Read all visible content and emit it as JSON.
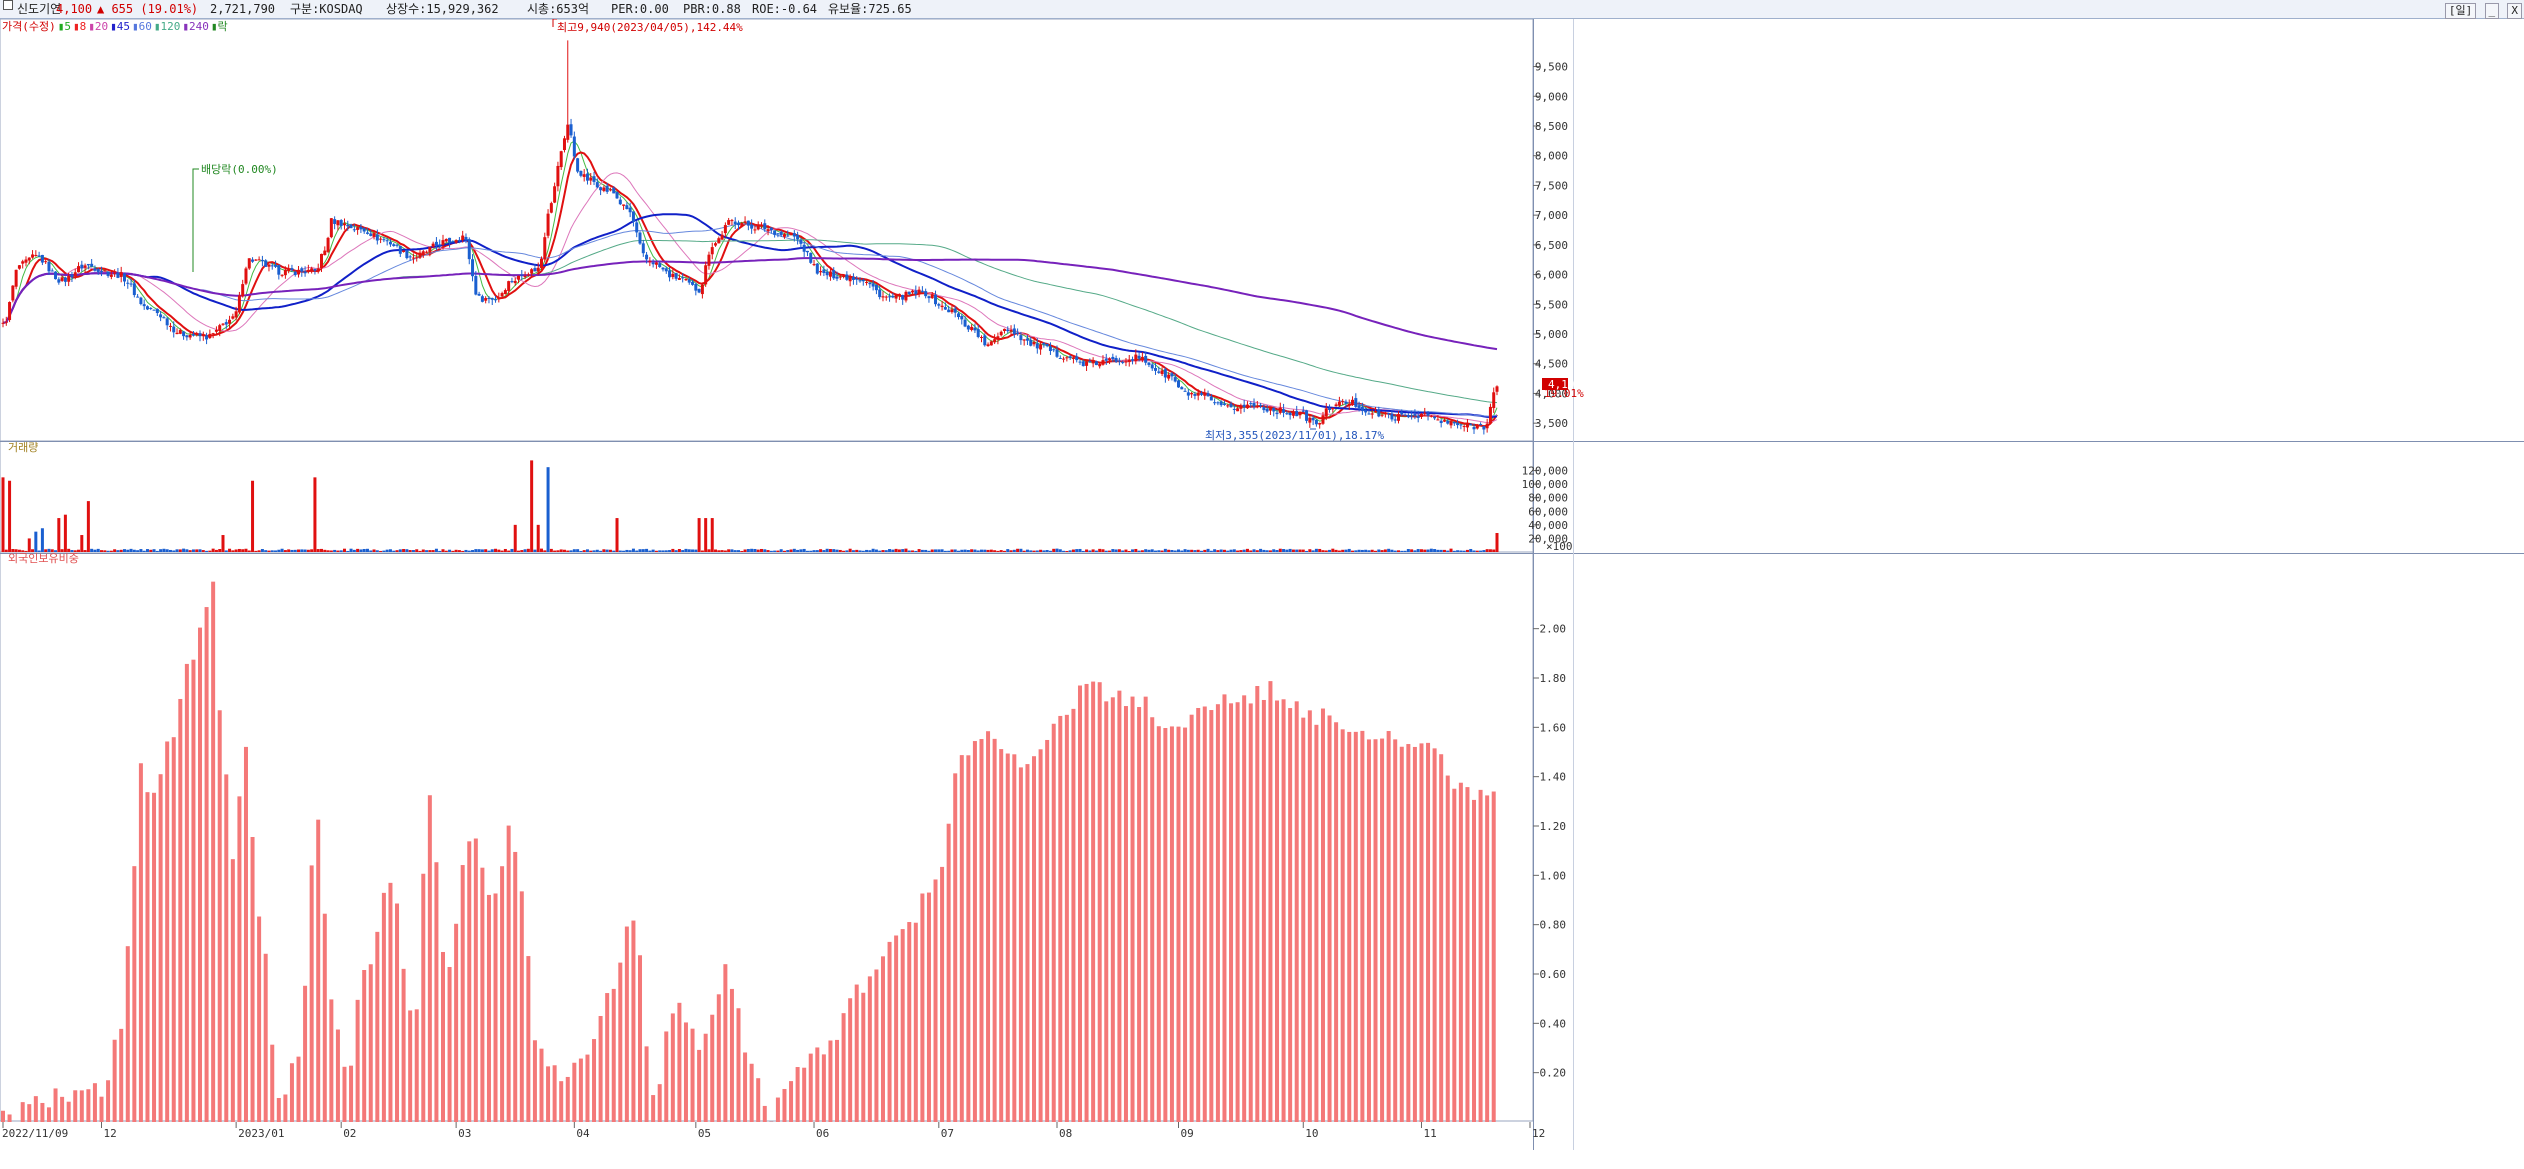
{
  "header": {
    "stock_name": "신도기연",
    "price": "4,100",
    "change": "▲ 655 (19.01%)",
    "volume": "2,721,790",
    "market": "구분:KOSDAQ",
    "shares": "상장수:15,929,362",
    "mcap": "시총:653억",
    "per": "PER:0.00",
    "pbr": "PBR:0.88",
    "roe": "ROE:-0.64",
    "float": "유보율:725.65",
    "period_button": "[일]",
    "min_button": "_",
    "close_button": "X"
  },
  "legend": {
    "price_label": "가격(수정)",
    "items": [
      {
        "label": "5",
        "color": "#22aa22"
      },
      {
        "label": "8",
        "color": "#ee2222"
      },
      {
        "label": "20",
        "color": "#cc44aa"
      },
      {
        "label": "45",
        "color": "#2222cc"
      },
      {
        "label": "60",
        "color": "#5577dd"
      },
      {
        "label": "120",
        "color": "#44aa88"
      },
      {
        "label": "240",
        "color": "#8833bb"
      },
      {
        "label": "락",
        "color": "#228822"
      }
    ]
  },
  "annotations": {
    "high": "최고9,940(2023/04/05),142.44%",
    "low": "최저3,355(2023/11/01),18.17%",
    "dividend": "배당락(0.00%)",
    "current_price": "4,100",
    "current_pct": "19.01%"
  },
  "volume_panel": {
    "title": "거래량",
    "unit": "×100"
  },
  "foreign_panel": {
    "title": "외국인보유비중"
  },
  "colors": {
    "up": "#e01010",
    "down": "#1a5fd0",
    "foreign_bar": "#f47878"
  },
  "chart_data": {
    "type": "candlestick",
    "x_labels": [
      "2022/11/09",
      "12",
      "2023/01",
      "02",
      "03",
      "04",
      "05",
      "06",
      "07",
      "08",
      "09",
      "10",
      "11",
      "12"
    ],
    "price_axis": {
      "ticks": [
        "9,500",
        "9,000",
        "8,500",
        "8,000",
        "7,500",
        "7,000",
        "6,500",
        "6,000",
        "5,500",
        "5,000",
        "4,500",
        "4,000",
        "3,500"
      ],
      "ylim": [
        3200,
        10300
      ]
    },
    "volume_axis": {
      "ticks": [
        "120,000",
        "100,000",
        "80,000",
        "60,000",
        "40,000",
        "20,000"
      ],
      "ylim": [
        0,
        140000
      ]
    },
    "foreign_axis": {
      "ticks": [
        "2.00",
        "1.80",
        "1.60",
        "1.40",
        "1.20",
        "1.00",
        "0.80",
        "0.60",
        "0.40",
        "0.20"
      ],
      "ylim": [
        0,
        2.25
      ]
    },
    "close_keypoints": [
      [
        0,
        5150
      ],
      [
        5,
        6150
      ],
      [
        10,
        6300
      ],
      [
        18,
        5900
      ],
      [
        25,
        6150
      ],
      [
        35,
        6000
      ],
      [
        45,
        5400
      ],
      [
        55,
        5000
      ],
      [
        62,
        4950
      ],
      [
        70,
        5250
      ],
      [
        75,
        6250
      ],
      [
        85,
        6050
      ],
      [
        95,
        6050
      ],
      [
        98,
        6400
      ],
      [
        100,
        6900
      ],
      [
        110,
        6750
      ],
      [
        115,
        6600
      ],
      [
        125,
        6300
      ],
      [
        135,
        6550
      ],
      [
        140,
        6650
      ],
      [
        145,
        5600
      ],
      [
        150,
        5600
      ],
      [
        155,
        5900
      ],
      [
        160,
        6050
      ],
      [
        163,
        6100
      ],
      [
        167,
        7250
      ],
      [
        170,
        8050
      ],
      [
        172,
        8550
      ],
      [
        175,
        7750
      ],
      [
        178,
        7600
      ],
      [
        185,
        7400
      ],
      [
        190,
        7100
      ],
      [
        196,
        6250
      ],
      [
        205,
        5950
      ],
      [
        212,
        5750
      ],
      [
        216,
        6500
      ],
      [
        222,
        6900
      ],
      [
        230,
        6800
      ],
      [
        240,
        6650
      ],
      [
        250,
        6000
      ],
      [
        260,
        5950
      ],
      [
        270,
        5600
      ],
      [
        280,
        5700
      ],
      [
        288,
        5400
      ],
      [
        295,
        5100
      ],
      [
        300,
        4800
      ],
      [
        305,
        5100
      ],
      [
        315,
        4800
      ],
      [
        322,
        4650
      ],
      [
        330,
        4500
      ],
      [
        345,
        4600
      ],
      [
        355,
        4300
      ],
      [
        360,
        4000
      ],
      [
        365,
        3950
      ],
      [
        372,
        3750
      ],
      [
        380,
        3800
      ],
      [
        390,
        3700
      ],
      [
        395,
        3650
      ],
      [
        400,
        3500
      ],
      [
        405,
        3800
      ],
      [
        410,
        3850
      ],
      [
        418,
        3650
      ],
      [
        425,
        3600
      ],
      [
        432,
        3650
      ],
      [
        440,
        3500
      ],
      [
        446,
        3450
      ],
      [
        451,
        3450
      ],
      [
        455,
        4100
      ]
    ],
    "volume_spikes": [
      [
        0,
        1100,
        "u"
      ],
      [
        2,
        1050,
        "u"
      ],
      [
        8,
        200,
        "u"
      ],
      [
        10,
        300,
        "d"
      ],
      [
        12,
        350,
        "d"
      ],
      [
        17,
        500,
        "u"
      ],
      [
        19,
        550,
        "u"
      ],
      [
        24,
        250,
        "u"
      ],
      [
        26,
        750,
        "u"
      ],
      [
        67,
        250,
        "u"
      ],
      [
        76,
        1050,
        "u"
      ],
      [
        95,
        1100,
        "u"
      ],
      [
        156,
        400,
        "u"
      ],
      [
        161,
        1350,
        "u"
      ],
      [
        163,
        400,
        "u"
      ],
      [
        166,
        1250,
        "d"
      ],
      [
        187,
        500,
        "u"
      ],
      [
        212,
        500,
        "u"
      ],
      [
        214,
        500,
        "u"
      ],
      [
        216,
        500,
        "u"
      ],
      [
        455,
        280,
        "u"
      ]
    ],
    "foreign_keypoints": [
      [
        0,
        0.02
      ],
      [
        15,
        0.1
      ],
      [
        30,
        0.12
      ],
      [
        36,
        0.4
      ],
      [
        40,
        1.0
      ],
      [
        42,
        1.45
      ],
      [
        44,
        1.3
      ],
      [
        52,
        1.6
      ],
      [
        58,
        1.9
      ],
      [
        64,
        2.2
      ],
      [
        66,
        1.7
      ],
      [
        70,
        1.1
      ],
      [
        74,
        1.5
      ],
      [
        78,
        0.8
      ],
      [
        85,
        0.05
      ],
      [
        90,
        0.3
      ],
      [
        96,
        1.25
      ],
      [
        100,
        0.5
      ],
      [
        105,
        0.2
      ],
      [
        110,
        0.6
      ],
      [
        118,
        1.0
      ],
      [
        125,
        0.4
      ],
      [
        130,
        1.3
      ],
      [
        135,
        0.6
      ],
      [
        142,
        1.15
      ],
      [
        150,
        0.9
      ],
      [
        155,
        1.2
      ],
      [
        158,
        0.9
      ],
      [
        163,
        0.3
      ],
      [
        170,
        0.2
      ],
      [
        178,
        0.3
      ],
      [
        185,
        0.5
      ],
      [
        192,
        0.85
      ],
      [
        198,
        0.1
      ],
      [
        205,
        0.5
      ],
      [
        212,
        0.3
      ],
      [
        220,
        0.6
      ],
      [
        228,
        0.25
      ],
      [
        233,
        0.02
      ],
      [
        240,
        0.2
      ],
      [
        250,
        0.3
      ],
      [
        262,
        0.55
      ],
      [
        275,
        0.8
      ],
      [
        285,
        1.0
      ],
      [
        292,
        1.5
      ],
      [
        300,
        1.55
      ],
      [
        310,
        1.45
      ],
      [
        320,
        1.6
      ],
      [
        330,
        1.75
      ],
      [
        345,
        1.72
      ],
      [
        355,
        1.62
      ],
      [
        375,
        1.7
      ],
      [
        385,
        1.75
      ],
      [
        400,
        1.65
      ],
      [
        420,
        1.58
      ],
      [
        435,
        1.5
      ],
      [
        445,
        1.35
      ],
      [
        455,
        1.3
      ]
    ]
  }
}
